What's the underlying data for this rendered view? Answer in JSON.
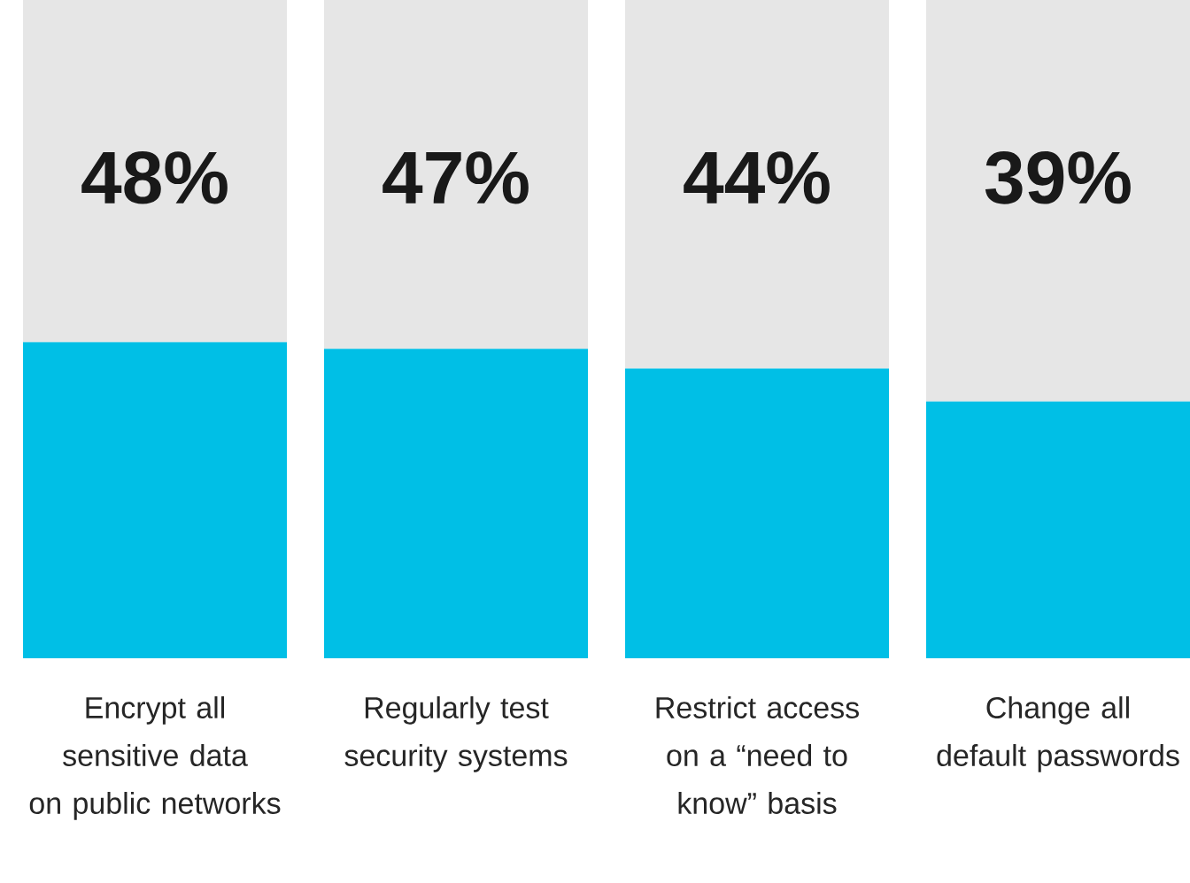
{
  "chart_data": {
    "type": "bar",
    "stacked": true,
    "tick_labels": "x",
    "categories": [
      "Encrypt all sensitive data on public networks",
      "Regularly test security systems",
      "Restrict access on a “need to know” basis",
      "Change all default passwords"
    ],
    "ylim": [
      0,
      100
    ],
    "series": [
      {
        "color": "#00bfe6",
        "values": [
          48,
          47,
          44,
          39
        ],
        "value_labels": [
          "48%",
          "47%",
          "44%",
          "39%"
        ]
      },
      {
        "color": "#e6e6e6",
        "values": [
          52,
          53,
          56,
          61
        ]
      }
    ]
  }
}
